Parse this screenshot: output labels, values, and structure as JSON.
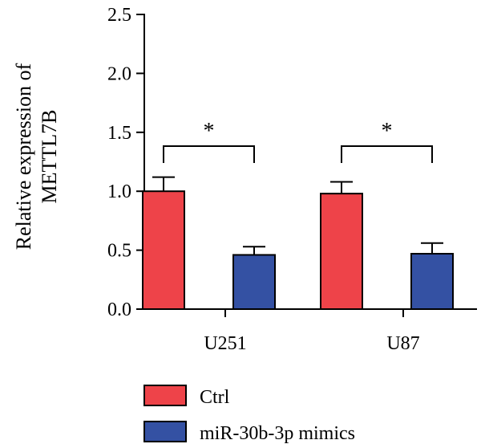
{
  "chart_data": {
    "type": "bar",
    "title": "",
    "xlabel": "",
    "ylabel_lines": [
      "Relative expression of",
      "METTL7B"
    ],
    "ylim": [
      0,
      2.5
    ],
    "yticks": [
      "0.0",
      "0.5",
      "1.0",
      "1.5",
      "2.0",
      "2.5"
    ],
    "categories": [
      "U251",
      "U87"
    ],
    "series": [
      {
        "name": "Ctrl",
        "color": "#ee4349",
        "values": [
          1.0,
          0.98
        ],
        "errors": [
          0.12,
          0.1
        ]
      },
      {
        "name": "miR-30b-3p mimics",
        "color": "#3451a3",
        "values": [
          0.46,
          0.47
        ],
        "errors": [
          0.07,
          0.09
        ]
      }
    ],
    "significance": [
      {
        "category_index": 0,
        "label": "*"
      },
      {
        "category_index": 1,
        "label": "*"
      }
    ],
    "legend_position": "bottom"
  }
}
